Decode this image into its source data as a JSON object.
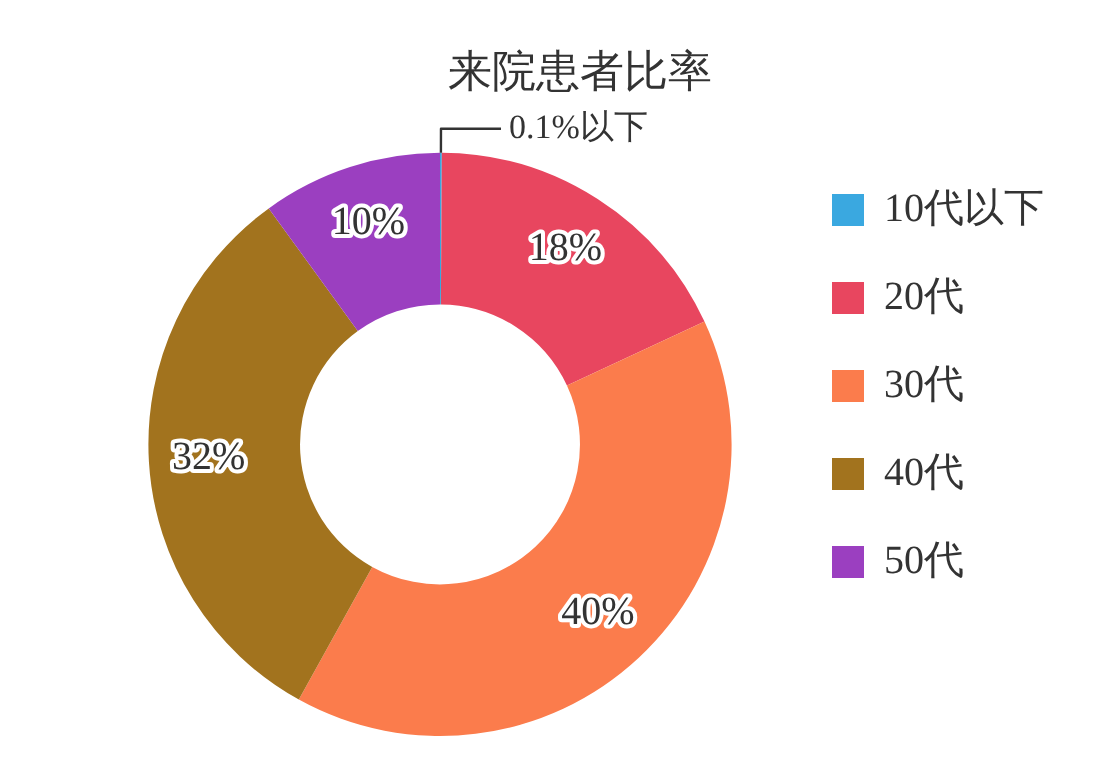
{
  "chart_data": {
    "type": "donut",
    "title": "来院患者比率",
    "categories": [
      "10代以下",
      "20代",
      "30代",
      "40代",
      "50代"
    ],
    "values": [
      0.1,
      18,
      40,
      32,
      10
    ],
    "colors": [
      "#3aa8e0",
      "#e8465f",
      "#fb7c4c",
      "#a2731e",
      "#9b3fc0"
    ],
    "value_labels": [
      "0.1%以下",
      "18%",
      "40%",
      "32%",
      "10%"
    ],
    "legend": "right"
  }
}
